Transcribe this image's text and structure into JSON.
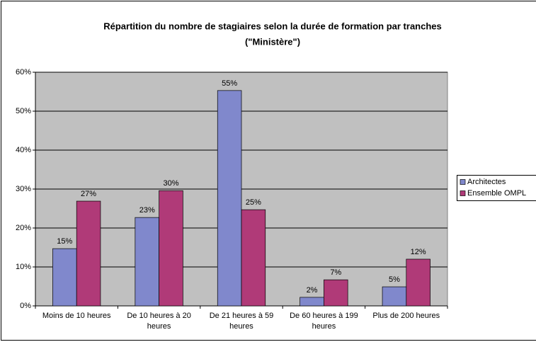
{
  "chart_data": {
    "type": "bar",
    "title": "Répartition du nombre de stagiaires selon la durée de formation par tranches",
    "subtitle": "(\"Ministère\")",
    "categories": [
      "Moins de 10 heures",
      "De 10 heures à 20 heures",
      "De 21 heures à 59 heures",
      "De 60 heures à 199 heures",
      "Plus de 200 heures"
    ],
    "series": [
      {
        "name": "Architectes",
        "color": "#8088cc",
        "values": [
          14.7,
          22.7,
          55.3,
          2.2,
          4.9
        ],
        "value_labels": [
          "15%",
          "23%",
          "55%",
          "2%",
          "5%"
        ]
      },
      {
        "name": "Ensemble OMPL",
        "color": "#b03a78",
        "values": [
          26.9,
          29.6,
          24.7,
          6.7,
          12
        ],
        "value_labels": [
          "27%",
          "30%",
          "25%",
          "7%",
          "12%"
        ]
      }
    ],
    "ylim": [
      0,
      60
    ],
    "yticks": [
      {
        "value": 0,
        "label": "0%"
      },
      {
        "value": 10,
        "label": "10%"
      },
      {
        "value": 20,
        "label": "20%"
      },
      {
        "value": 30,
        "label": "30%"
      },
      {
        "value": 40,
        "label": "40%"
      },
      {
        "value": 50,
        "label": "50%"
      },
      {
        "value": 60,
        "label": "60%"
      }
    ],
    "grid": true,
    "legend": "right"
  }
}
